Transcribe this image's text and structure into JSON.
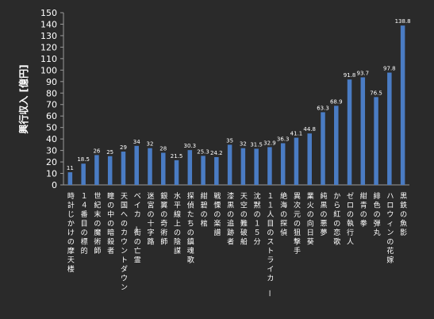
{
  "chart_data": {
    "type": "bar",
    "ylabel": "興行収入 [億円]",
    "ylim": [
      0,
      150
    ],
    "ytick_step": 10,
    "grid": false,
    "bar_color": "#4a7cc4",
    "categories": [
      "時計じかけの摩天楼",
      "１４番目の標的",
      "世紀末の魔術師",
      "瞳の中の暗殺者",
      "天国へのカウントダウン",
      "ベイカー街の亡霊",
      "迷宮の十字路",
      "銀翼の奇術師",
      "水平線上の陰謀",
      "探偵たちの鎮魂歌",
      "紺碧の棺",
      "戦慄の楽譜",
      "漆黒の追跡者",
      "天空の難破船",
      "沈黙の１５分",
      "１１人目のストライカー",
      "絶海の探偵",
      "異次元の狙撃手",
      "業火の向日葵",
      "純黒の悪夢",
      "から紅の恋歌",
      "ゼロの執行人",
      "紺青の拳",
      "緋色の弾丸",
      "ハロウィンの花嫁",
      "黒鉄の魚影"
    ],
    "values": [
      11,
      18.5,
      26,
      25,
      29,
      34,
      32,
      28,
      21.5,
      30.3,
      25.3,
      24.2,
      35,
      32,
      31.5,
      32.9,
      36.3,
      41.1,
      44.8,
      63.3,
      68.9,
      91.8,
      93.7,
      76.5,
      97.8,
      138.8
    ]
  }
}
